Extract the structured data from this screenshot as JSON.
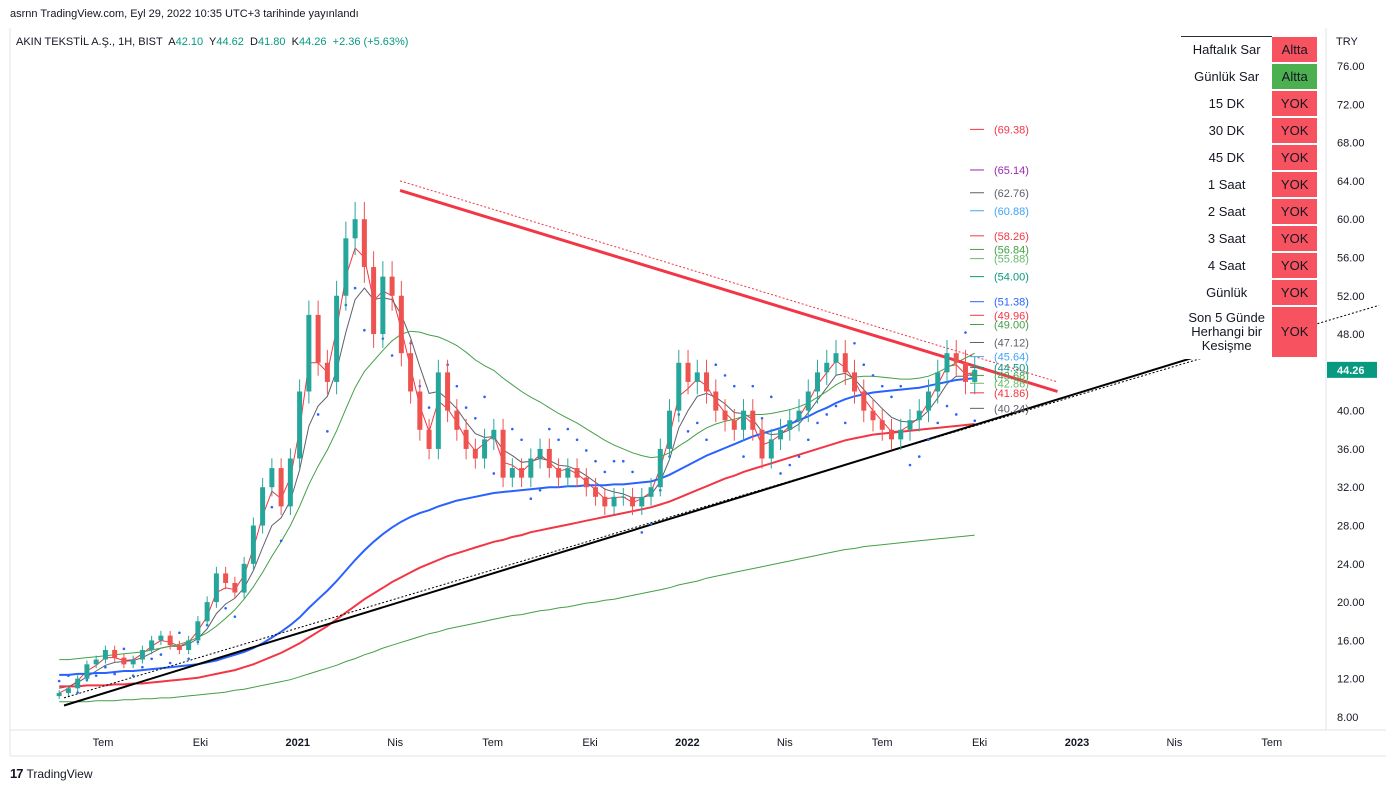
{
  "header": {
    "published": "asrnn TradingView.com, Eyl 29, 2022 10:35 UTC+3 tarihinde yayınlandı",
    "symbol": "AKIN TEKSTİL A.Ş., 1H, BIST",
    "o_label": "A",
    "o": "42.10",
    "h_label": "Y",
    "h": "44.62",
    "l_label": "D",
    "l": "41.80",
    "c_label": "K",
    "c": "44.26",
    "change": "+2.36 (+5.63%)"
  },
  "footer": {
    "brand": "TradingView",
    "logo": "tv-logo-icon"
  },
  "signal_table": [
    {
      "label": "Haftalık Sar",
      "value": "Altta",
      "color": "#f7525f"
    },
    {
      "label": "Günlük Sar",
      "value": "Altta",
      "color": "#4caf50"
    },
    {
      "label": "15 DK",
      "value": "YOK",
      "color": "#f7525f"
    },
    {
      "label": "30 DK",
      "value": "YOK",
      "color": "#f7525f"
    },
    {
      "label": "45 DK",
      "value": "YOK",
      "color": "#f7525f"
    },
    {
      "label": "1 Saat",
      "value": "YOK",
      "color": "#f7525f"
    },
    {
      "label": "2 Saat",
      "value": "YOK",
      "color": "#f7525f"
    },
    {
      "label": "3 Saat",
      "value": "YOK",
      "color": "#f7525f"
    },
    {
      "label": "4 Saat",
      "value": "YOK",
      "color": "#f7525f"
    },
    {
      "label": "Günlük",
      "value": "YOK",
      "color": "#f7525f"
    },
    {
      "label": "Son 5 Günde Herhangi bir Kesişme",
      "value": "YOK",
      "color": "#f7525f"
    }
  ],
  "chart_data": {
    "type": "line",
    "currency": "TRY",
    "last_price": "44.26",
    "last_price_color": "#089981",
    "up_color": "#26a69a",
    "down_color": "#ef5350",
    "ylim": [
      6,
      80
    ],
    "y_ticks": [
      "76.00",
      "72.00",
      "68.00",
      "64.00",
      "60.00",
      "56.00",
      "52.00",
      "48.00",
      "40.00",
      "36.00",
      "32.00",
      "28.00",
      "24.00",
      "20.00",
      "16.00",
      "12.00",
      "8.00"
    ],
    "x_ticks": [
      {
        "label": "Tem",
        "t": 0.5,
        "bold": false
      },
      {
        "label": "Eki",
        "t": 1.5,
        "bold": false
      },
      {
        "label": "2021",
        "t": 2.5,
        "bold": true
      },
      {
        "label": "Nis",
        "t": 3.5,
        "bold": false
      },
      {
        "label": "Tem",
        "t": 4.5,
        "bold": false
      },
      {
        "label": "Eki",
        "t": 5.5,
        "bold": false
      },
      {
        "label": "2022",
        "t": 6.5,
        "bold": true
      },
      {
        "label": "Nis",
        "t": 7.5,
        "bold": false
      },
      {
        "label": "Tem",
        "t": 8.5,
        "bold": false
      },
      {
        "label": "Eki",
        "t": 9.5,
        "bold": false
      },
      {
        "label": "2023",
        "t": 10.5,
        "bold": true
      },
      {
        "label": "Nis",
        "t": 11.5,
        "bold": false
      },
      {
        "label": "Tem",
        "t": 12.5,
        "bold": false
      }
    ],
    "price": [
      10.5,
      11,
      12,
      13.5,
      14,
      15,
      14.2,
      13.5,
      14,
      15,
      16,
      16.5,
      15.5,
      15,
      16,
      18,
      20,
      23,
      22,
      21,
      24,
      28,
      32,
      34,
      30,
      35,
      42,
      50,
      45,
      43,
      52,
      58,
      60,
      55,
      48,
      54,
      52,
      46,
      42,
      38,
      36,
      44,
      40,
      38,
      36,
      35,
      37,
      38,
      33,
      34,
      33,
      35,
      36,
      34,
      33,
      34,
      33,
      32,
      31,
      30,
      31,
      31,
      30,
      31,
      32,
      36,
      40,
      45,
      43,
      44,
      42,
      40,
      39,
      38,
      40,
      38,
      35,
      37,
      38,
      39,
      40,
      42,
      44,
      45,
      46,
      44,
      42,
      40,
      39,
      38,
      37,
      38,
      39,
      40,
      42,
      44,
      46,
      45,
      43,
      44.26
    ],
    "ma_lines": [
      {
        "name": "",
        "color": "#f23645",
        "width": 1,
        "values": [
          10.5,
          11,
          11.8,
          12.8,
          13.4,
          14.2,
          14.2,
          13.9,
          14,
          14.6,
          15.4,
          16,
          15.8,
          15.4,
          15.8,
          17,
          18.5,
          21,
          21.5,
          21.3,
          22.8,
          25.6,
          29,
          31.6,
          30.8,
          33,
          38,
          45,
          45,
          44,
          48.5,
          54,
          57,
          56,
          51.5,
          52.5,
          52,
          48.5,
          44.5,
          40.5,
          37.8,
          41,
          40.2,
          38.8,
          37,
          35.8,
          36.6,
          37.4,
          34.6,
          34.3,
          33.6,
          34.5,
          35.4,
          34.6,
          33.7,
          33.9,
          33.4,
          32.6,
          31.7,
          30.8,
          30.9,
          31,
          30.4,
          30.8,
          31.5,
          34,
          37.3,
          41.5,
          42.3,
          43.3,
          42.6,
          41,
          39.8,
          38.8,
          39.5,
          38.6,
          36.4,
          36.8,
          37.5,
          38.4,
          39.3,
          40.9,
          42.7,
          44,
          45.2,
          44.5,
          43.1,
          41.3,
          40,
          38.9,
          37.8,
          37.9,
          38.5,
          39.3,
          40.9,
          42.7,
          44.6,
          44.8,
          43.8,
          44
        ]
      },
      {
        "name": "",
        "color": "#5d606b",
        "width": 1,
        "values": [
          11,
          11.2,
          11.6,
          12.2,
          12.8,
          13.4,
          13.7,
          13.8,
          13.9,
          14.2,
          14.7,
          15.2,
          15.4,
          15.4,
          15.6,
          16.2,
          17.2,
          18.8,
          19.8,
          20.4,
          21.5,
          23.3,
          25.7,
          28,
          28.8,
          30.6,
          33.8,
          38.4,
          40.5,
          41.5,
          44.2,
          48.2,
          51.6,
          52.8,
          51.6,
          51.8,
          51.6,
          50,
          47.6,
          44.6,
          41.8,
          42,
          41.2,
          40.2,
          38.8,
          37.6,
          37.2,
          37.3,
          35.9,
          35.3,
          34.6,
          34.7,
          35,
          34.8,
          34.3,
          34.2,
          33.8,
          33.2,
          32.5,
          31.8,
          31.5,
          31.3,
          30.9,
          30.9,
          31.2,
          32.6,
          34.9,
          38.2,
          40,
          41.5,
          41.8,
          41.4,
          40.7,
          39.8,
          39.7,
          39.1,
          37.8,
          37.5,
          37.6,
          38,
          38.6,
          39.8,
          41.1,
          42.4,
          43.7,
          43.9,
          43.3,
          42.2,
          41.2,
          40.2,
          39.3,
          38.9,
          38.8,
          39.1,
          40,
          41.3,
          42.8,
          43.6,
          43.6,
          43.9
        ]
      },
      {
        "name": "",
        "color": "#43a047",
        "width": 1,
        "values": [
          14,
          14,
          14.1,
          14.2,
          14.3,
          14.4,
          14.5,
          14.6,
          14.7,
          14.8,
          15,
          15.2,
          15.4,
          15.6,
          15.9,
          16.3,
          16.8,
          17.5,
          18.3,
          19.2,
          20.3,
          21.6,
          23.1,
          24.8,
          26.3,
          28,
          30,
          32.3,
          34.2,
          35.9,
          37.9,
          40.2,
          42.4,
          44.1,
          45.2,
          46.3,
          47.3,
          48,
          48.3,
          48.2,
          47.9,
          47.7,
          47.3,
          46.8,
          46.1,
          45.3,
          44.7,
          44.2,
          43.4,
          42.7,
          42,
          41.4,
          40.9,
          40.3,
          39.7,
          39.2,
          38.7,
          38.1,
          37.5,
          36.9,
          36.4,
          36,
          35.6,
          35.3,
          35.1,
          35.2,
          35.6,
          36.3,
          36.9,
          37.6,
          38.2,
          38.6,
          38.9,
          39.1,
          39.4,
          39.6,
          39.6,
          39.7,
          39.9,
          40.1,
          40.4,
          40.8,
          41.4,
          42,
          42.7,
          43.2,
          43.5,
          43.6,
          43.6,
          43.5,
          43.4,
          43.3,
          43.3,
          43.4,
          43.6,
          44,
          44.5,
          45,
          45.5,
          46
        ]
      },
      {
        "name": "",
        "color": "#2962ff",
        "width": 2,
        "values": [
          12.4,
          12.4,
          12.5,
          12.5,
          12.6,
          12.6,
          12.7,
          12.8,
          12.8,
          12.9,
          13,
          13.1,
          13.2,
          13.3,
          13.4,
          13.5,
          13.7,
          13.9,
          14.2,
          14.5,
          14.8,
          15.2,
          15.7,
          16.3,
          16.9,
          17.6,
          18.4,
          19.4,
          20.3,
          21.2,
          22.2,
          23.3,
          24.4,
          25.4,
          26.3,
          27.1,
          27.8,
          28.4,
          28.9,
          29.3,
          29.6,
          30,
          30.3,
          30.6,
          30.8,
          31,
          31.2,
          31.4,
          31.5,
          31.6,
          31.7,
          31.8,
          31.9,
          32,
          32,
          32.1,
          32.1,
          32.2,
          32.2,
          32.2,
          32.3,
          32.3,
          32.4,
          32.5,
          32.6,
          32.9,
          33.3,
          33.8,
          34.3,
          34.8,
          35.3,
          35.7,
          36.1,
          36.5,
          36.9,
          37.3,
          37.6,
          37.9,
          38.2,
          38.6,
          39,
          39.4,
          39.9,
          40.3,
          40.8,
          41.2,
          41.5,
          41.7,
          41.9,
          42,
          42.1,
          42.2,
          42.3,
          42.4,
          42.6,
          42.8,
          43,
          43.2,
          43.3,
          43.4
        ]
      },
      {
        "name": "",
        "color": "#f23645",
        "width": 2,
        "values": [
          11.2,
          11.2,
          11.2,
          11.3,
          11.3,
          11.3,
          11.4,
          11.4,
          11.5,
          11.5,
          11.6,
          11.7,
          11.8,
          11.9,
          12,
          12.1,
          12.3,
          12.5,
          12.7,
          12.9,
          13.2,
          13.5,
          13.9,
          14.3,
          14.7,
          15.2,
          15.7,
          16.3,
          16.9,
          17.5,
          18.2,
          18.9,
          19.6,
          20.3,
          20.9,
          21.5,
          22.1,
          22.6,
          23.1,
          23.6,
          24,
          24.4,
          24.8,
          25.1,
          25.4,
          25.7,
          26,
          26.3,
          26.5,
          26.8,
          27,
          27.3,
          27.5,
          27.7,
          27.9,
          28.1,
          28.3,
          28.5,
          28.7,
          28.9,
          29.1,
          29.3,
          29.5,
          29.7,
          29.9,
          30.2,
          30.5,
          30.9,
          31.3,
          31.7,
          32.1,
          32.5,
          32.9,
          33.2,
          33.6,
          33.9,
          34.2,
          34.5,
          34.8,
          35.1,
          35.4,
          35.7,
          36,
          36.3,
          36.6,
          36.9,
          37.1,
          37.3,
          37.5,
          37.6,
          37.7,
          37.8,
          37.9,
          38,
          38.1,
          38.2,
          38.3,
          38.4,
          38.5,
          38.6
        ]
      },
      {
        "name": "",
        "color": "#43a047",
        "width": 1,
        "values": [
          9.6,
          9.6,
          9.6,
          9.6,
          9.7,
          9.7,
          9.7,
          9.8,
          9.8,
          9.9,
          9.9,
          10,
          10,
          10.1,
          10.2,
          10.3,
          10.4,
          10.5,
          10.6,
          10.8,
          10.9,
          11.1,
          11.3,
          11.5,
          11.7,
          11.9,
          12.2,
          12.5,
          12.8,
          13.1,
          13.4,
          13.8,
          14.1,
          14.5,
          14.8,
          15.2,
          15.5,
          15.8,
          16.1,
          16.4,
          16.7,
          16.9,
          17.2,
          17.4,
          17.6,
          17.8,
          18,
          18.2,
          18.4,
          18.6,
          18.7,
          18.9,
          19.1,
          19.2,
          19.4,
          19.5,
          19.7,
          19.9,
          20,
          20.2,
          20.3,
          20.5,
          20.7,
          20.9,
          21.1,
          21.3,
          21.5,
          21.8,
          22,
          22.2,
          22.5,
          22.7,
          22.9,
          23.1,
          23.3,
          23.5,
          23.7,
          23.9,
          24.1,
          24.3,
          24.5,
          24.7,
          24.9,
          25.1,
          25.3,
          25.5,
          25.6,
          25.8,
          25.9,
          26,
          26.1,
          26.2,
          26.3,
          26.4,
          26.5,
          26.6,
          26.7,
          26.8,
          26.9,
          27
        ]
      }
    ],
    "trendlines": [
      {
        "color": "#f23645",
        "width": 3,
        "from": [
          3.55,
          63
        ],
        "to": [
          10.3,
          42
        ],
        "dashed": false
      },
      {
        "color": "#f23645",
        "width": 1,
        "from": [
          3.55,
          64
        ],
        "to": [
          10.3,
          43
        ],
        "dashed": true
      },
      {
        "color": "#000000",
        "width": 2,
        "from": [
          0.1,
          9.2
        ],
        "to": [
          12.0,
          46.5
        ],
        "dashed": false
      },
      {
        "color": "#000000",
        "width": 1,
        "from": [
          0.1,
          10
        ],
        "to": [
          13.6,
          51
        ],
        "dashed": true
      }
    ],
    "level_labels": [
      {
        "value": "(69.38)",
        "y": 69.38,
        "color": "#f23645"
      },
      {
        "value": "(65.14)",
        "y": 65.14,
        "color": "#9c27b0"
      },
      {
        "value": "(62.76)",
        "y": 62.76,
        "color": "#5d606b"
      },
      {
        "value": "(60.88)",
        "y": 60.88,
        "color": "#42a5f5"
      },
      {
        "value": "(58.26)",
        "y": 58.26,
        "color": "#f23645"
      },
      {
        "value": "(56.84)",
        "y": 56.84,
        "color": "#43a047"
      },
      {
        "value": "(55.88)",
        "y": 55.88,
        "color": "#66bb6a"
      },
      {
        "value": "(54.00)",
        "y": 54.0,
        "color": "#089981"
      },
      {
        "value": "(51.38)",
        "y": 51.38,
        "color": "#2962ff"
      },
      {
        "value": "(49.96)",
        "y": 49.96,
        "color": "#f23645"
      },
      {
        "value": "(49.00)",
        "y": 49.0,
        "color": "#43a047"
      },
      {
        "value": "(47.12)",
        "y": 47.12,
        "color": "#5d606b"
      },
      {
        "value": "(45.64)",
        "y": 45.64,
        "color": "#42a5f5"
      },
      {
        "value": "(44.50)",
        "y": 44.5,
        "color": "#089981"
      },
      {
        "value": "(43.68)",
        "y": 43.68,
        "color": "#43a047"
      },
      {
        "value": "(42.86)",
        "y": 42.86,
        "color": "#66bb6a"
      },
      {
        "value": "(41.86)",
        "y": 41.86,
        "color": "#f23645"
      },
      {
        "value": "(40.24)",
        "y": 40.24,
        "color": "#5d606b"
      }
    ]
  }
}
